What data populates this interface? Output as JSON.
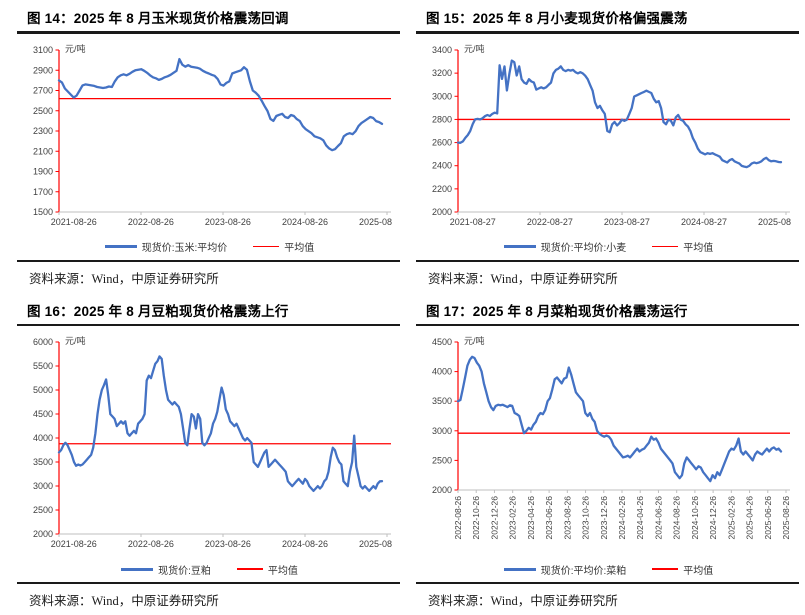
{
  "colors": {
    "series_blue": "#4472C4",
    "average_red": "#FF0000",
    "axis_gray": "#BFBFBF",
    "tick_text": "#404040",
    "rule_black": "#1A1A1A"
  },
  "chart_data": [
    {
      "type": "line",
      "title": "图 14：2025 年 8 月玉米现货价格震荡回调",
      "ylabel": "元/吨",
      "source": "资料来源：Wind，中原证券研究所",
      "ylim": [
        1500,
        3100
      ],
      "yticks": [
        1500,
        1700,
        1900,
        2100,
        2300,
        2500,
        2700,
        2900,
        3100
      ],
      "x_axis_labels": [
        "2021-08-26",
        "2022-08-26",
        "2023-08-26",
        "2024-08-26",
        "2025-08"
      ],
      "x_labels_rotated": false,
      "grid": false,
      "legend_position": "bottom",
      "series": [
        {
          "name": "现货价:玉米:平均价",
          "type": "line",
          "color": "#4472C4",
          "values": [
            2800,
            2780,
            2720,
            2690,
            2660,
            2630,
            2650,
            2700,
            2750,
            2760,
            2755,
            2750,
            2745,
            2735,
            2730,
            2725,
            2730,
            2740,
            2735,
            2790,
            2830,
            2850,
            2860,
            2850,
            2865,
            2885,
            2900,
            2905,
            2910,
            2895,
            2875,
            2850,
            2830,
            2820,
            2805,
            2815,
            2830,
            2840,
            2855,
            2875,
            2895,
            3010,
            2955,
            2935,
            2950,
            2935,
            2930,
            2925,
            2915,
            2895,
            2880,
            2868,
            2855,
            2845,
            2815,
            2760,
            2748,
            2775,
            2790,
            2868,
            2880,
            2890,
            2900,
            2930,
            2905,
            2790,
            2700,
            2678,
            2648,
            2600,
            2548,
            2498,
            2420,
            2400,
            2448,
            2460,
            2470,
            2438,
            2428,
            2458,
            2448,
            2418,
            2398,
            2348,
            2318,
            2298,
            2278,
            2248,
            2238,
            2228,
            2208,
            2158,
            2128,
            2110,
            2120,
            2152,
            2180,
            2248,
            2268,
            2278,
            2268,
            2298,
            2348,
            2378,
            2398,
            2418,
            2438,
            2428,
            2398,
            2388,
            2370
          ]
        },
        {
          "name": "平均值",
          "type": "hline",
          "color": "#FF0000",
          "value": 2620
        }
      ]
    },
    {
      "type": "line",
      "title": "图 15：2025 年 8 月小麦现货价格偏强震荡",
      "ylabel": "元/吨",
      "source": "资料来源：Wind，中原证券研究所",
      "ylim": [
        2000,
        3400
      ],
      "yticks": [
        2000,
        2200,
        2400,
        2600,
        2800,
        3000,
        3200,
        3400
      ],
      "x_axis_labels": [
        "2021-08-27",
        "2022-08-27",
        "2023-08-27",
        "2024-08-27",
        "2025-08"
      ],
      "x_labels_rotated": false,
      "grid": false,
      "legend_position": "bottom",
      "series": [
        {
          "name": "现货价:平均价:小麦",
          "type": "line",
          "color": "#4472C4",
          "values": [
            2600,
            2598,
            2610,
            2640,
            2665,
            2700,
            2760,
            2800,
            2805,
            2800,
            2810,
            2828,
            2838,
            2830,
            2848,
            2858,
            2852,
            3268,
            3150,
            3258,
            3050,
            3195,
            3308,
            3295,
            3180,
            3258,
            3148,
            3118,
            3108,
            3148,
            3128,
            3118,
            3058,
            3068,
            3078,
            3068,
            3078,
            3098,
            3118,
            3198,
            3228,
            3238,
            3258,
            3228,
            3218,
            3228,
            3222,
            3228,
            3208,
            3198,
            3208,
            3198,
            3178,
            3148,
            3098,
            3048,
            2948,
            2898,
            2918,
            2878,
            2848,
            2700,
            2690,
            2758,
            2778,
            2748,
            2768,
            2798,
            2788,
            2798,
            2848,
            2898,
            2998,
            3008,
            3018,
            3028,
            3038,
            3048,
            3038,
            3028,
            2978,
            2948,
            2958,
            2898,
            2778,
            2758,
            2798,
            2788,
            2748,
            2818,
            2838,
            2798,
            2788,
            2758,
            2738,
            2698,
            2638,
            2598,
            2548,
            2518,
            2508,
            2498,
            2508,
            2502,
            2508,
            2498,
            2488,
            2478,
            2448,
            2438,
            2428,
            2448,
            2458,
            2438,
            2428,
            2418,
            2398,
            2392,
            2388,
            2398,
            2418,
            2428,
            2422,
            2428,
            2438,
            2458,
            2468,
            2448,
            2438,
            2442,
            2438,
            2432,
            2430
          ]
        },
        {
          "name": "平均值",
          "type": "hline",
          "color": "#FF0000",
          "value": 2800
        }
      ]
    },
    {
      "type": "line",
      "title": "图 16：2025 年 8 月豆粕现货价格震荡上行",
      "ylabel": "元/吨",
      "source": "资料来源：Wind，中原证券研究所",
      "ylim": [
        2000,
        6000
      ],
      "yticks": [
        2000,
        2500,
        3000,
        3500,
        4000,
        4500,
        5000,
        5500,
        6000
      ],
      "x_axis_labels": [
        "2021-08-26",
        "2022-08-26",
        "2023-08-26",
        "2024-08-26",
        "2025-08"
      ],
      "x_labels_rotated": false,
      "grid": false,
      "legend_position": "bottom",
      "series": [
        {
          "name": "现货价:豆粕",
          "type": "line",
          "color": "#4472C4",
          "values": [
            3700,
            3748,
            3848,
            3900,
            3848,
            3748,
            3648,
            3498,
            3420,
            3448,
            3428,
            3448,
            3498,
            3548,
            3598,
            3648,
            3798,
            4098,
            4498,
            4798,
            4998,
            5098,
            5220,
            4898,
            4498,
            4448,
            4398,
            4248,
            4298,
            4348,
            4298,
            4348,
            4098,
            4048,
            4098,
            4148,
            4098,
            4298,
            4348,
            4398,
            4498,
            5198,
            5298,
            5248,
            5398,
            5548,
            5598,
            5700,
            5648,
            5298,
            4998,
            4798,
            4748,
            4698,
            4748,
            4698,
            4648,
            4498,
            4198,
            3898,
            3848,
            4198,
            4498,
            4448,
            4198,
            4498,
            4398,
            3898,
            3848,
            3898,
            3998,
            4098,
            4298,
            4398,
            4548,
            4798,
            5050,
            4898,
            4598,
            4498,
            4348,
            4298,
            4248,
            4298,
            4198,
            4098,
            3998,
            3948,
            3998,
            3948,
            3898,
            3498,
            3448,
            3398,
            3498,
            3598,
            3698,
            3748,
            3398,
            3448,
            3498,
            3548,
            3498,
            3448,
            3398,
            3348,
            3298,
            3098,
            3048,
            2998,
            3048,
            3098,
            3148,
            3098,
            3048,
            3148,
            3098,
            2998,
            2948,
            2898,
            2948,
            2998,
            2948,
            2998,
            3098,
            3148,
            3298,
            3598,
            3798,
            3748,
            3598,
            3498,
            3448,
            3098,
            3048,
            2998,
            3298,
            3498,
            4050,
            3398,
            3198,
            2998,
            2948,
            2998,
            2948,
            2898,
            2948,
            2998,
            2948,
            3048,
            3098,
            3100
          ]
        },
        {
          "name": "平均值",
          "type": "hline",
          "color": "#FF0000",
          "value": 3880
        }
      ]
    },
    {
      "type": "line",
      "title": "图 17：2025 年 8 月菜粕现货价格震荡运行",
      "ylabel": "元/吨",
      "source": "资料来源：Wind，中原证券研究所",
      "ylim": [
        2000,
        4500
      ],
      "yticks": [
        2000,
        2500,
        3000,
        3500,
        4000,
        4500
      ],
      "x_axis_labels": [
        "2022-08-26",
        "2022-10-26",
        "2022-12-26",
        "2023-02-26",
        "2023-04-26",
        "2023-06-26",
        "2023-08-26",
        "2023-10-26",
        "2023-12-26",
        "2024-02-26",
        "2024-04-26",
        "2024-06-26",
        "2024-08-26",
        "2024-10-26",
        "2024-12-26",
        "2025-02-26",
        "2025-04-26",
        "2025-06-26",
        "2025-08-26"
      ],
      "x_labels_rotated": true,
      "grid": false,
      "legend_position": "bottom",
      "series": [
        {
          "name": "现货价:平均价:菜粕",
          "type": "line",
          "color": "#4472C4",
          "values": [
            3500,
            3520,
            3700,
            3900,
            4100,
            4200,
            4250,
            4230,
            4150,
            4100,
            4000,
            3800,
            3650,
            3500,
            3400,
            3350,
            3420,
            3440,
            3430,
            3440,
            3420,
            3400,
            3430,
            3420,
            3300,
            3280,
            3250,
            3100,
            2960,
            3000,
            3050,
            3020,
            3100,
            3150,
            3250,
            3300,
            3280,
            3350,
            3500,
            3550,
            3700,
            3870,
            3900,
            3850,
            3800,
            3880,
            3900,
            4070,
            3950,
            3800,
            3650,
            3600,
            3550,
            3500,
            3300,
            3250,
            3300,
            3200,
            3150,
            3000,
            2950,
            2920,
            2900,
            2920,
            2900,
            2850,
            2750,
            2700,
            2650,
            2600,
            2550,
            2560,
            2580,
            2550,
            2600,
            2650,
            2700,
            2650,
            2680,
            2700,
            2750,
            2800,
            2900,
            2850,
            2870,
            2800,
            2700,
            2650,
            2600,
            2550,
            2500,
            2450,
            2300,
            2250,
            2200,
            2250,
            2450,
            2550,
            2500,
            2450,
            2400,
            2350,
            2400,
            2380,
            2300,
            2250,
            2200,
            2150,
            2250,
            2200,
            2300,
            2250,
            2350,
            2450,
            2550,
            2650,
            2700,
            2680,
            2750,
            2870,
            2650,
            2600,
            2650,
            2600,
            2550,
            2500,
            2600,
            2650,
            2620,
            2600,
            2650,
            2700,
            2650,
            2700,
            2720,
            2680,
            2700,
            2650
          ]
        },
        {
          "name": "平均值",
          "type": "hline",
          "color": "#FF0000",
          "value": 2960
        }
      ]
    }
  ]
}
